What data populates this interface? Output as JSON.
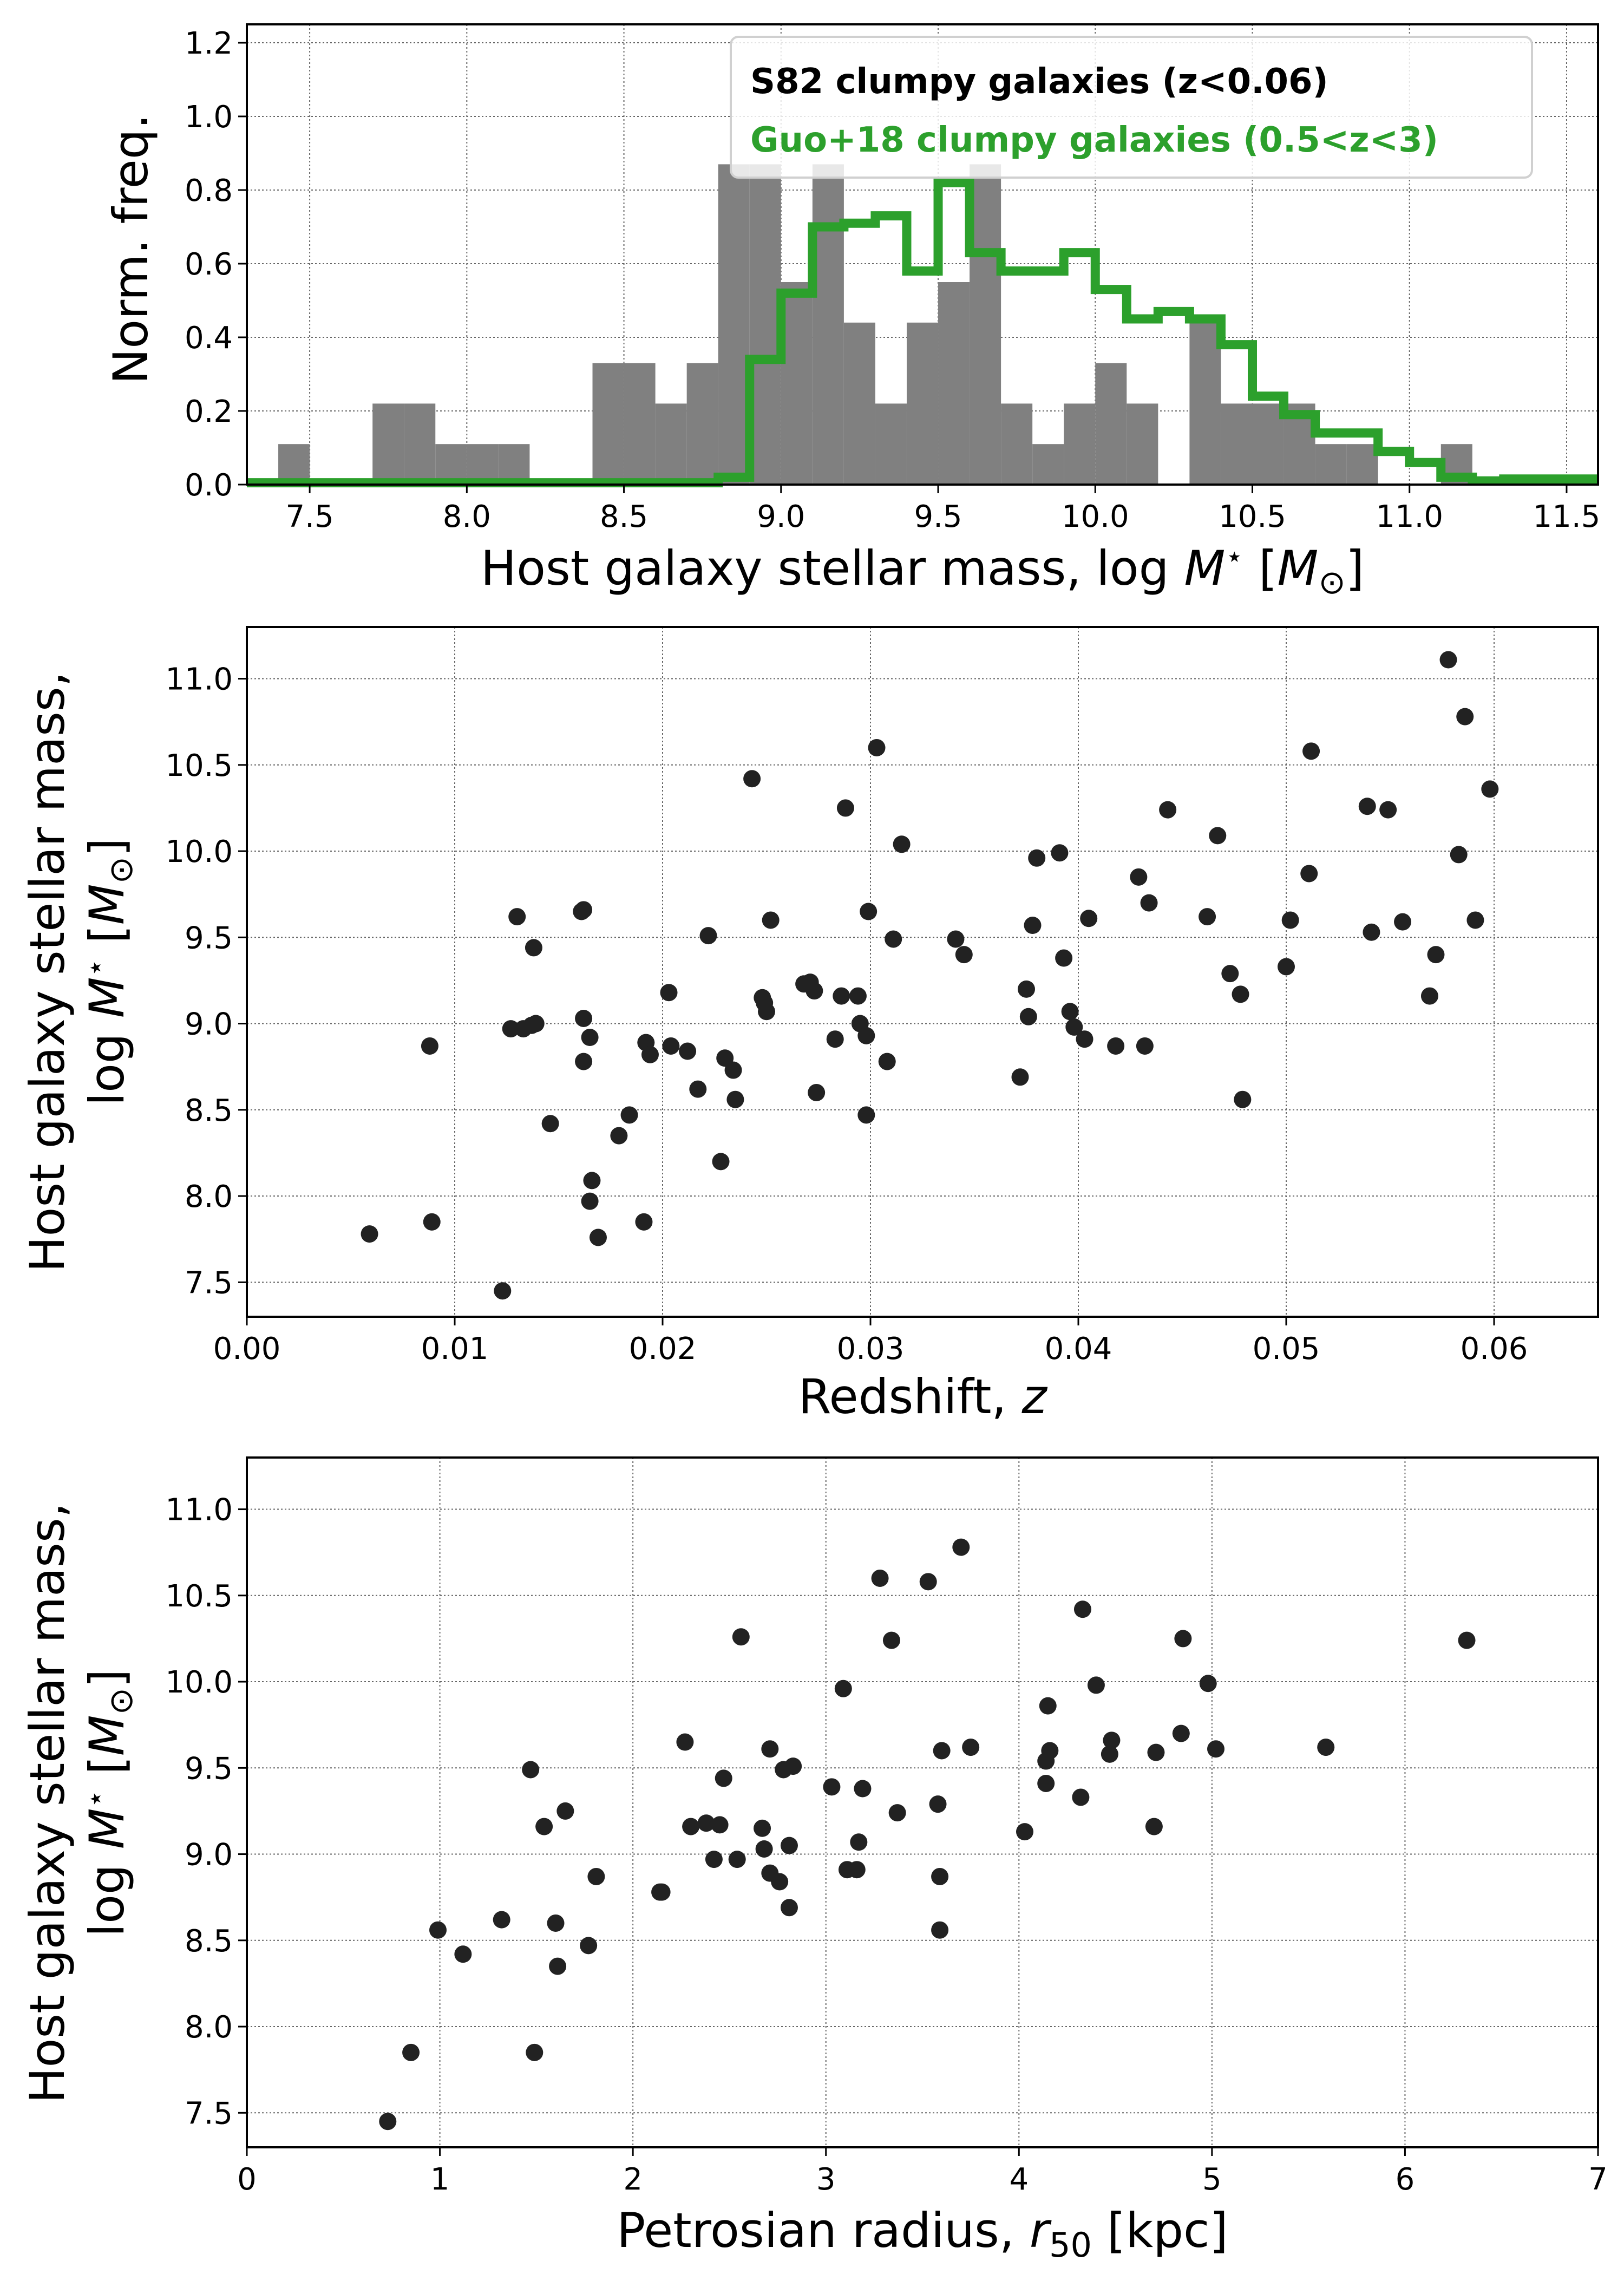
{
  "colors": {
    "histogram_fill": "#808080",
    "guo_step": "#2ca02c",
    "scatter_point": "#222222",
    "grid": "#666666"
  },
  "chart_data": [
    {
      "type": "bar",
      "subtype": "histogram-with-step",
      "xlabel": "Host galaxy stellar mass, log M⋆ [M⊙]",
      "ylabel": "Norm. freq.",
      "xlim": [
        7.3,
        11.6
      ],
      "ylim": [
        0.0,
        1.25
      ],
      "xticks": [
        7.5,
        8.0,
        8.5,
        9.0,
        9.5,
        10.0,
        10.5,
        11.0,
        11.5
      ],
      "yticks": [
        0.0,
        0.2,
        0.4,
        0.6,
        0.8,
        1.0,
        1.2
      ],
      "xtick_labels": [
        "7.5",
        "8.0",
        "8.5",
        "9.0",
        "9.5",
        "10.0",
        "10.5",
        "11.0",
        "11.5"
      ],
      "ytick_labels": [
        "0.0",
        "0.2",
        "0.4",
        "0.6",
        "0.8",
        "1.0",
        "1.2"
      ],
      "grid": true,
      "legend_placement": "top-right",
      "series": [
        {
          "name": "S82 clumpy galaxies (z<0.06)",
          "style": "filled-histogram",
          "bin_edges": [
            7.4,
            7.5,
            7.6,
            7.7,
            7.8,
            7.9,
            8.0,
            8.1,
            8.2,
            8.3,
            8.4,
            8.5,
            8.6,
            8.7,
            8.8,
            8.9,
            9.0,
            9.1,
            9.2,
            9.3,
            9.4,
            9.5,
            9.6,
            9.7,
            9.8,
            9.9,
            10.0,
            10.1,
            10.2,
            10.3,
            10.4,
            10.5,
            10.6,
            10.7,
            10.8,
            10.9,
            11.0,
            11.1,
            11.2
          ],
          "values": [
            0.11,
            0.0,
            0.0,
            0.22,
            0.22,
            0.11,
            0.11,
            0.11,
            0.0,
            0.0,
            0.33,
            0.33,
            0.22,
            0.33,
            0.87,
            0.87,
            0.55,
            0.87,
            0.44,
            0.22,
            0.44,
            0.55,
            0.87,
            0.22,
            0.11,
            0.22,
            0.33,
            0.22,
            0.0,
            0.44,
            0.22,
            0.22,
            0.22,
            0.11,
            0.11,
            0.0,
            0.0,
            0.11
          ]
        },
        {
          "name": "Guo+18 clumpy galaxies (0.5<z<3)",
          "style": "step-line",
          "bin_edges": [
            7.3,
            7.4,
            7.5,
            7.6,
            7.7,
            7.8,
            7.9,
            8.0,
            8.1,
            8.2,
            8.3,
            8.4,
            8.5,
            8.6,
            8.7,
            8.8,
            8.9,
            9.0,
            9.1,
            9.2,
            9.3,
            9.4,
            9.5,
            9.6,
            9.7,
            9.8,
            9.9,
            10.0,
            10.1,
            10.2,
            10.3,
            10.4,
            10.5,
            10.6,
            10.7,
            10.8,
            10.9,
            11.0,
            11.1,
            11.2,
            11.3,
            11.4,
            11.5,
            11.6
          ],
          "values": [
            0.005,
            0.005,
            0.005,
            0.005,
            0.005,
            0.005,
            0.005,
            0.005,
            0.005,
            0.005,
            0.005,
            0.005,
            0.005,
            0.005,
            0.005,
            0.02,
            0.34,
            0.52,
            0.7,
            0.71,
            0.73,
            0.58,
            0.82,
            0.63,
            0.58,
            0.58,
            0.63,
            0.53,
            0.45,
            0.47,
            0.45,
            0.38,
            0.24,
            0.19,
            0.14,
            0.14,
            0.09,
            0.06,
            0.02,
            0.01,
            0.015,
            0.015,
            0.015
          ]
        }
      ]
    },
    {
      "type": "scatter",
      "xlabel": "Redshift, z",
      "ylabel_line1": "Host galaxy stellar mass,",
      "ylabel_line2": "log M⋆ [M⊙]",
      "xlim": [
        0.0,
        0.065
      ],
      "ylim": [
        7.3,
        11.3
      ],
      "xticks": [
        0.0,
        0.01,
        0.02,
        0.03,
        0.04,
        0.05,
        0.06
      ],
      "xtick_labels": [
        "0.00",
        "0.01",
        "0.02",
        "0.03",
        "0.04",
        "0.05",
        "0.06"
      ],
      "yticks": [
        7.5,
        8.0,
        8.5,
        9.0,
        9.5,
        10.0,
        10.5,
        11.0
      ],
      "ytick_labels": [
        "7.5",
        "8.0",
        "8.5",
        "9.0",
        "9.5",
        "10.0",
        "10.5",
        "11.0"
      ],
      "grid": true,
      "points": [
        [
          0.0059,
          7.78
        ],
        [
          0.0088,
          8.87
        ],
        [
          0.0089,
          7.85
        ],
        [
          0.0123,
          7.45
        ],
        [
          0.0127,
          8.97
        ],
        [
          0.013,
          9.62
        ],
        [
          0.0133,
          8.97
        ],
        [
          0.0137,
          8.99
        ],
        [
          0.0138,
          9.44
        ],
        [
          0.0139,
          9.0
        ],
        [
          0.0146,
          8.42
        ],
        [
          0.0161,
          9.65
        ],
        [
          0.0162,
          9.66
        ],
        [
          0.0162,
          9.03
        ],
        [
          0.0162,
          8.78
        ],
        [
          0.0165,
          8.92
        ],
        [
          0.0165,
          7.97
        ],
        [
          0.0166,
          8.09
        ],
        [
          0.0169,
          7.76
        ],
        [
          0.0179,
          8.35
        ],
        [
          0.0184,
          8.47
        ],
        [
          0.0191,
          7.85
        ],
        [
          0.0192,
          8.89
        ],
        [
          0.0194,
          8.82
        ],
        [
          0.0203,
          9.18
        ],
        [
          0.0204,
          8.87
        ],
        [
          0.0212,
          8.84
        ],
        [
          0.0217,
          8.62
        ],
        [
          0.0222,
          9.51
        ],
        [
          0.0228,
          8.2
        ],
        [
          0.023,
          8.8
        ],
        [
          0.0234,
          8.73
        ],
        [
          0.0235,
          8.56
        ],
        [
          0.0243,
          10.42
        ],
        [
          0.0248,
          9.15
        ],
        [
          0.0249,
          9.12
        ],
        [
          0.025,
          9.07
        ],
        [
          0.0252,
          9.6
        ],
        [
          0.0268,
          9.23
        ],
        [
          0.0271,
          9.24
        ],
        [
          0.0273,
          9.19
        ],
        [
          0.0274,
          8.6
        ],
        [
          0.0283,
          8.91
        ],
        [
          0.0286,
          9.16
        ],
        [
          0.0288,
          10.25
        ],
        [
          0.0294,
          9.16
        ],
        [
          0.0295,
          9.0
        ],
        [
          0.0298,
          8.93
        ],
        [
          0.0298,
          8.47
        ],
        [
          0.0299,
          9.65
        ],
        [
          0.0303,
          10.6
        ],
        [
          0.0308,
          8.78
        ],
        [
          0.0311,
          9.49
        ],
        [
          0.0315,
          10.04
        ],
        [
          0.0341,
          9.49
        ],
        [
          0.0345,
          9.4
        ],
        [
          0.0372,
          8.69
        ],
        [
          0.0375,
          9.2
        ],
        [
          0.0376,
          9.04
        ],
        [
          0.0378,
          9.57
        ],
        [
          0.038,
          9.96
        ],
        [
          0.0391,
          9.99
        ],
        [
          0.0393,
          9.38
        ],
        [
          0.0396,
          9.07
        ],
        [
          0.0398,
          8.98
        ],
        [
          0.0403,
          8.91
        ],
        [
          0.0405,
          9.61
        ],
        [
          0.0418,
          8.87
        ],
        [
          0.0429,
          9.85
        ],
        [
          0.0432,
          8.87
        ],
        [
          0.0434,
          9.7
        ],
        [
          0.0443,
          10.24
        ],
        [
          0.0462,
          9.62
        ],
        [
          0.0467,
          10.09
        ],
        [
          0.0473,
          9.29
        ],
        [
          0.0478,
          9.17
        ],
        [
          0.0479,
          8.56
        ],
        [
          0.05,
          9.33
        ],
        [
          0.0502,
          9.6
        ],
        [
          0.0511,
          9.87
        ],
        [
          0.0512,
          10.58
        ],
        [
          0.0539,
          10.26
        ],
        [
          0.0541,
          9.53
        ],
        [
          0.0549,
          10.24
        ],
        [
          0.0556,
          9.59
        ],
        [
          0.0569,
          9.16
        ],
        [
          0.0572,
          9.4
        ],
        [
          0.0578,
          11.11
        ],
        [
          0.0583,
          9.98
        ],
        [
          0.0586,
          10.78
        ],
        [
          0.0591,
          9.6
        ],
        [
          0.0598,
          10.36
        ]
      ]
    },
    {
      "type": "scatter",
      "xlabel": "Petrosian radius, r50 [kpc]",
      "xlabel_main": "Petrosian radius, ",
      "xlabel_var": "r",
      "xlabel_sub": "50",
      "xlabel_unit": " [kpc]",
      "ylabel_line1": "Host galaxy stellar mass,",
      "ylabel_line2": "log M⋆ [M⊙]",
      "xlim": [
        0,
        7
      ],
      "ylim": [
        7.3,
        11.3
      ],
      "xticks": [
        0,
        1,
        2,
        3,
        4,
        5,
        6,
        7
      ],
      "xtick_labels": [
        "0",
        "1",
        "2",
        "3",
        "4",
        "5",
        "6",
        "7"
      ],
      "yticks": [
        7.5,
        8.0,
        8.5,
        9.0,
        9.5,
        10.0,
        10.5,
        11.0
      ],
      "ytick_labels": [
        "7.5",
        "8.0",
        "8.5",
        "9.0",
        "9.5",
        "10.0",
        "10.5",
        "11.0"
      ],
      "grid": true,
      "points": [
        [
          0.73,
          7.45
        ],
        [
          0.85,
          7.85
        ],
        [
          0.99,
          8.56
        ],
        [
          1.12,
          8.42
        ],
        [
          1.32,
          8.62
        ],
        [
          1.47,
          9.49
        ],
        [
          1.49,
          7.85
        ],
        [
          1.54,
          9.16
        ],
        [
          1.6,
          8.6
        ],
        [
          1.61,
          8.35
        ],
        [
          1.65,
          9.25
        ],
        [
          1.77,
          8.47
        ],
        [
          1.81,
          8.87
        ],
        [
          2.14,
          8.78
        ],
        [
          2.15,
          8.78
        ],
        [
          2.27,
          9.65
        ],
        [
          2.3,
          9.16
        ],
        [
          2.38,
          9.18
        ],
        [
          2.42,
          8.97
        ],
        [
          2.45,
          9.17
        ],
        [
          2.47,
          9.44
        ],
        [
          2.54,
          8.97
        ],
        [
          2.56,
          10.26
        ],
        [
          2.67,
          9.15
        ],
        [
          2.68,
          9.03
        ],
        [
          2.71,
          9.61
        ],
        [
          2.71,
          8.89
        ],
        [
          2.76,
          8.84
        ],
        [
          2.78,
          9.49
        ],
        [
          2.81,
          9.05
        ],
        [
          2.81,
          8.69
        ],
        [
          2.83,
          9.51
        ],
        [
          3.03,
          9.39
        ],
        [
          3.09,
          9.96
        ],
        [
          3.11,
          8.91
        ],
        [
          3.16,
          8.91
        ],
        [
          3.17,
          9.07
        ],
        [
          3.19,
          9.38
        ],
        [
          3.28,
          10.6
        ],
        [
          3.34,
          10.24
        ],
        [
          3.37,
          9.24
        ],
        [
          3.53,
          10.58
        ],
        [
          3.58,
          9.29
        ],
        [
          3.59,
          8.87
        ],
        [
          3.59,
          8.56
        ],
        [
          3.6,
          9.6
        ],
        [
          3.7,
          10.78
        ],
        [
          3.75,
          9.62
        ],
        [
          4.03,
          9.13
        ],
        [
          4.14,
          9.41
        ],
        [
          4.14,
          9.54
        ],
        [
          4.15,
          9.86
        ],
        [
          4.16,
          9.6
        ],
        [
          4.32,
          9.33
        ],
        [
          4.33,
          10.42
        ],
        [
          4.4,
          9.98
        ],
        [
          4.47,
          9.58
        ],
        [
          4.48,
          9.66
        ],
        [
          4.7,
          9.16
        ],
        [
          4.71,
          9.59
        ],
        [
          4.84,
          9.7
        ],
        [
          4.85,
          10.25
        ],
        [
          4.98,
          9.99
        ],
        [
          5.02,
          9.61
        ],
        [
          5.59,
          9.62
        ],
        [
          6.32,
          10.24
        ]
      ]
    }
  ]
}
